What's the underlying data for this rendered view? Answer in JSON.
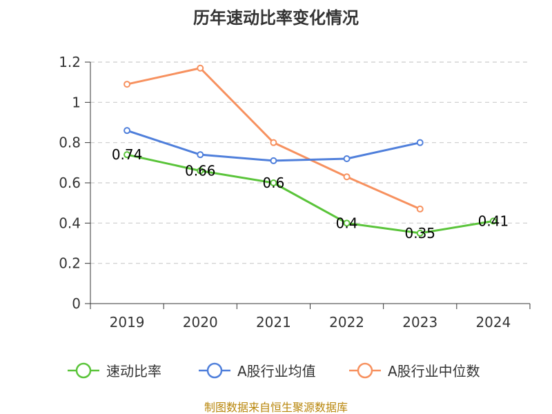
{
  "chart_data": {
    "type": "line",
    "title": "历年速动比率变化情况",
    "categories": [
      "2019",
      "2020",
      "2021",
      "2022",
      "2023",
      "2024"
    ],
    "ylim": [
      0,
      1.2
    ],
    "yticks": [
      "0",
      "0.2",
      "0.4",
      "0.6",
      "0.8",
      "1",
      "1.2"
    ],
    "grid": true,
    "legend_position": "bottom",
    "series": [
      {
        "name": "速动比率",
        "color": "#5ac43a",
        "values": [
          0.74,
          0.66,
          0.6,
          0.4,
          0.35,
          0.41
        ],
        "labels": [
          "0.74",
          "0.66",
          "0.6",
          "0.4",
          "0.35",
          "0.41"
        ]
      },
      {
        "name": "A股行业均值",
        "color": "#4f7fdb",
        "values": [
          0.86,
          0.74,
          0.71,
          0.72,
          0.8,
          null
        ]
      },
      {
        "name": "A股行业中位数",
        "color": "#f7915f",
        "values": [
          1.09,
          1.17,
          0.8,
          0.63,
          0.47,
          null
        ]
      }
    ]
  },
  "source": "制图数据来自恒生聚源数据库"
}
